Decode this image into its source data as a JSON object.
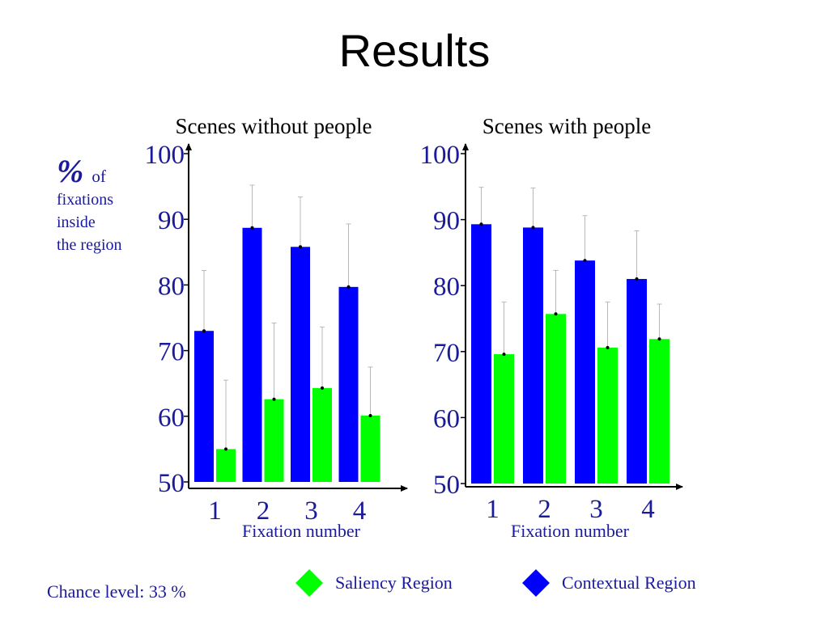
{
  "title": "Results",
  "ylabel": {
    "symbol": "%",
    "of": "of",
    "lines": [
      "fixations",
      "inside",
      "the region"
    ]
  },
  "footer": {
    "chance": "Chance level: 33 %"
  },
  "legend": [
    {
      "label": "Saliency Region",
      "color": "#00ff00"
    },
    {
      "label": "Contextual Region",
      "color": "#0000ff"
    }
  ],
  "chart_data": [
    {
      "type": "bar",
      "title": "Scenes without people",
      "xlabel": "Fixation number",
      "ylabel": "% of fixations inside the region",
      "ylim": [
        50,
        100
      ],
      "yticks": [
        50,
        60,
        70,
        80,
        90,
        100
      ],
      "categories": [
        "1",
        "2",
        "3",
        "4"
      ],
      "series": [
        {
          "name": "Contextual Region",
          "color": "#0000ff",
          "values": [
            73,
            88.7,
            85.8,
            79.7
          ],
          "err_upper": [
            82.2,
            95.2,
            93.4,
            89.3
          ]
        },
        {
          "name": "Saliency Region",
          "color": "#00ff00",
          "values": [
            55,
            62.6,
            64.3,
            60.1
          ],
          "err_upper": [
            65.5,
            74.2,
            73.6,
            67.5
          ]
        }
      ]
    },
    {
      "type": "bar",
      "title": "Scenes with people",
      "xlabel": "Fixation number",
      "ylabel": "% of fixations inside the region",
      "ylim": [
        50,
        100
      ],
      "yticks": [
        50,
        60,
        70,
        80,
        90,
        100
      ],
      "categories": [
        "1",
        "2",
        "3",
        "4"
      ],
      "series": [
        {
          "name": "Contextual Region",
          "color": "#0000ff",
          "values": [
            89.3,
            88.8,
            83.8,
            81
          ],
          "err_upper": [
            94.9,
            94.8,
            90.6,
            88.3
          ]
        },
        {
          "name": "Saliency Region",
          "color": "#00ff00",
          "values": [
            69.6,
            75.7,
            70.6,
            71.9
          ],
          "err_upper": [
            77.5,
            82.3,
            77.5,
            77.2
          ]
        }
      ]
    }
  ]
}
